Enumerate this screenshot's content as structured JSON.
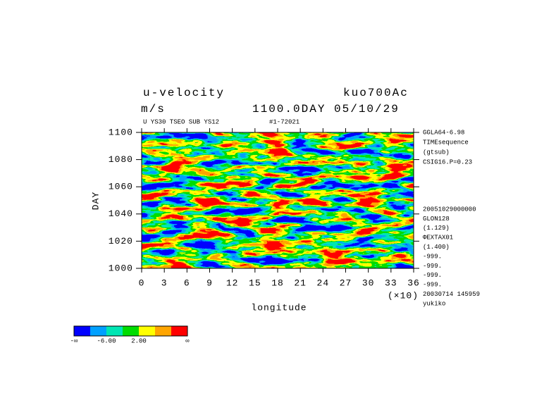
{
  "chart_data": {
    "type": "heatmap",
    "title": "u-velocity",
    "experiment": "kuo700Ac",
    "unit": "m/s",
    "time_label": "1100.0DAY 05/10/29",
    "subtitle": "U YS30 TSEO SUB YS12",
    "run_id": "#1-72021",
    "right_notes_top": [
      "GGLA64-6.98",
      "TIMEsequence",
      "(gtsub)",
      "CSIG16.P=0.23"
    ],
    "right_notes_bottom": [
      "20051029000000",
      "GLON128",
      "(1.129)",
      "ΦEXTAX01",
      "(1.400)",
      "-999.",
      "-999.",
      "-999.",
      "-999.",
      "20030714 145959",
      "yukiko"
    ],
    "x_label": "longitude",
    "x_scale_label": "(×10)",
    "y_label": "DAY",
    "xlim": [
      0,
      36
    ],
    "xticks": [
      0,
      3,
      6,
      9,
      12,
      15,
      18,
      21,
      24,
      27,
      30,
      33,
      36
    ],
    "ylim": [
      1000,
      1100
    ],
    "yticks": [
      1000,
      1020,
      1040,
      1060,
      1080,
      1100
    ],
    "colorbar": {
      "colors": [
        "#0000ff",
        "#00a0ff",
        "#00e6b4",
        "#00dc00",
        "#ffff00",
        "#ffa500",
        "#ff0000"
      ],
      "labels": [
        "-∞",
        "-6.00",
        "2.00",
        "∞"
      ]
    }
  }
}
